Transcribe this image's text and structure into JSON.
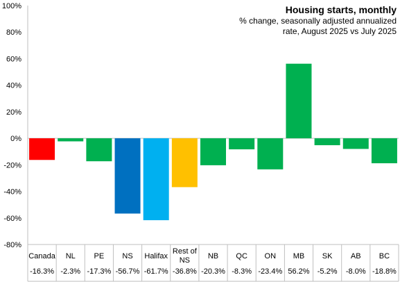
{
  "chart_data": {
    "type": "bar",
    "title": "Housing starts, monthly",
    "subtitle": [
      "% change, seasonally adjusted annualized",
      "rate, August 2025 vs July 2025"
    ],
    "categories": [
      [
        "Canada"
      ],
      [
        "NL"
      ],
      [
        "PE"
      ],
      [
        "NS"
      ],
      [
        "Halifax"
      ],
      [
        "Rest of",
        "NS"
      ],
      [
        "NB"
      ],
      [
        "QC"
      ],
      [
        "ON"
      ],
      [
        "MB"
      ],
      [
        "SK"
      ],
      [
        "AB"
      ],
      [
        "BC"
      ]
    ],
    "values": [
      -16.3,
      -2.3,
      -17.3,
      -56.7,
      -61.7,
      -36.8,
      -20.3,
      -8.3,
      -23.4,
      56.2,
      -5.2,
      -8.0,
      -18.8
    ],
    "value_labels": [
      "-16.3%",
      "-2.3%",
      "-17.3%",
      "-56.7%",
      "-61.7%",
      "-36.8%",
      "-20.3%",
      "-8.3%",
      "-23.4%",
      "56.2%",
      "-5.2%",
      "-8.0%",
      "-18.8%"
    ],
    "colors": [
      "#ff0000",
      "#00b050",
      "#00b050",
      "#0070c0",
      "#00b0f0",
      "#ffc000",
      "#00b050",
      "#00b050",
      "#00b050",
      "#00b050",
      "#00b050",
      "#00b050",
      "#00b050"
    ],
    "ylim": [
      -80,
      100
    ],
    "yticks": [
      -80,
      -60,
      -40,
      -20,
      0,
      20,
      40,
      60,
      80,
      100
    ],
    "ytick_labels": [
      "-80%",
      "-60%",
      "-40%",
      "-20%",
      "0%",
      "20%",
      "40%",
      "60%",
      "80%",
      "100%"
    ],
    "grid": false,
    "legend": "none",
    "data_table_below": true
  }
}
